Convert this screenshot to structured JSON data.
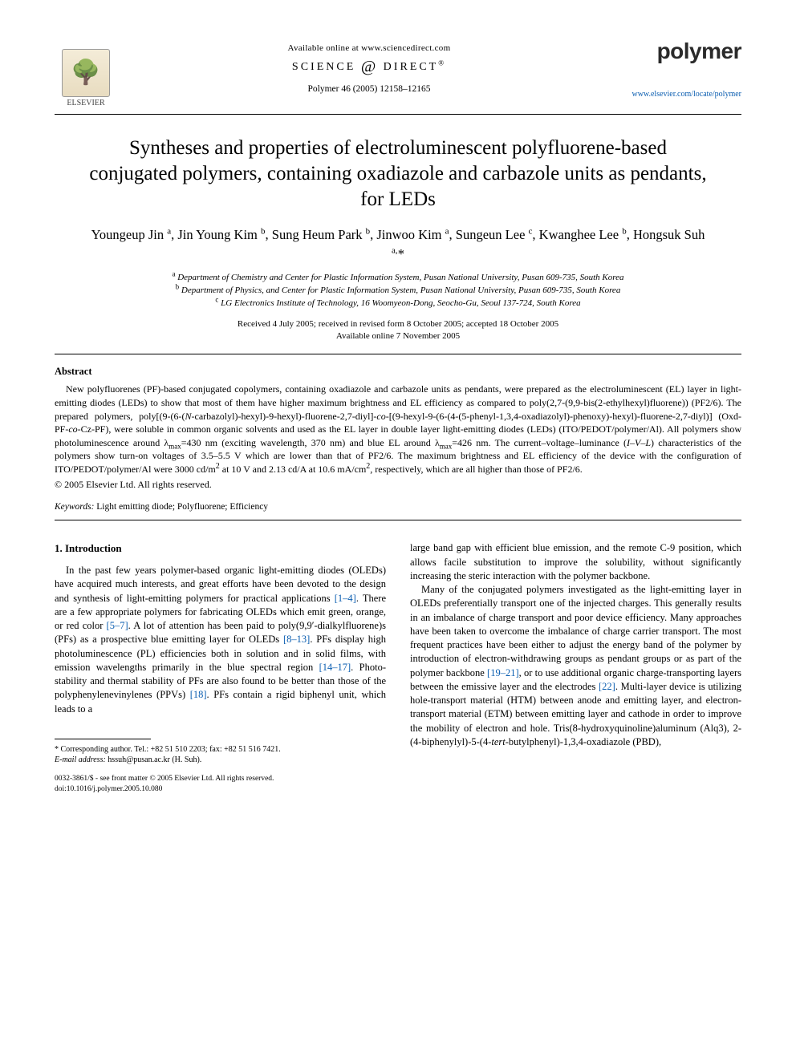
{
  "header": {
    "available_online": "Available online at www.sciencedirect.com",
    "sd_prefix": "SCIENCE",
    "sd_suffix": "DIRECT",
    "journal_ref": "Polymer 46 (2005) 12158–12165",
    "publisher_name": "ELSEVIER",
    "brand_name": "polymer",
    "brand_link": "www.elsevier.com/locate/polymer"
  },
  "title": "Syntheses and properties of electroluminescent polyfluorene-based conjugated polymers, containing oxadiazole and carbazole units as pendants, for LEDs",
  "authors_html": "Youngeup Jin <sup>a</sup>, Jin Young Kim <sup>b</sup>, Sung Heum Park <sup>b</sup>, Jinwoo Kim <sup>a</sup>, Sungeun Lee <sup>c</sup>, Kwanghee Lee <sup>b</sup>, Hongsuk Suh <sup>a,</sup>*",
  "affiliations": {
    "a": "Department of Chemistry and Center for Plastic Information System, Pusan National University, Pusan 609-735, South Korea",
    "b": "Department of Physics, and Center for Plastic Information System, Pusan National University, Pusan 609-735, South Korea",
    "c": "LG Electronics Institute of Technology, 16 Woomyeon-Dong, Seocho-Gu, Seoul 137-724, South Korea"
  },
  "dates": {
    "line1": "Received 4 July 2005; received in revised form 8 October 2005; accepted 18 October 2005",
    "line2": "Available online 7 November 2005"
  },
  "abstract": {
    "heading": "Abstract",
    "body_html": "New polyfluorenes (PF)-based conjugated copolymers, containing oxadiazole and carbazole units as pendants, were prepared as the electroluminescent (EL) layer in light-emitting diodes (LEDs) to show that most of them have higher maximum brightness and EL efficiency as compared to poly(2,7-(9,9-bis(2-ethylhexyl)fluorene)) (PF2/6). The prepared polymers, poly[(9-(6-(<i>N</i>-carbazolyl)-hexyl)-9-hexyl)-fluorene-2,7-diyl]-<i>co</i>-[(9-hexyl-9-(6-(4-(5-phenyl-1,3,4-oxadiazolyl)-phenoxy)-hexyl)-fluorene-2,7-diyl)] (Oxd-PF-<i>co</i>-Cz-PF), were soluble in common organic solvents and used as the EL layer in double layer light-emitting diodes (LEDs) (ITO/PEDOT/polymer/Al). All polymers show photoluminescence around λ<sub>max</sub>=430 nm (exciting wavelength, 370 nm) and blue EL around λ<sub>max</sub>=426 nm. The current–voltage–luminance (<i>I–V–L</i>) characteristics of the polymers show turn-on voltages of 3.5–5.5 V which are lower than that of PF2/6. The maximum brightness and EL efficiency of the device with the configuration of ITO/PEDOT/polymer/Al were 3000 cd/m<sup>2</sup> at 10 V and 2.13 cd/A at 10.6 mA/cm<sup>2</sup>, respectively, which are all higher than those of PF2/6.",
    "copyright": "© 2005 Elsevier Ltd. All rights reserved."
  },
  "keywords": {
    "label": "Keywords:",
    "text": " Light emitting diode; Polyfluorene; Efficiency"
  },
  "intro": {
    "heading": "1. Introduction",
    "col1_p1_html": "In the past few years polymer-based organic light-emitting diodes (OLEDs) have acquired much interests, and great efforts have been devoted to the design and synthesis of light-emitting polymers for practical applications <span class=\"ref\">[1–4]</span>. There are a few appropriate polymers for fabricating OLEDs which emit green, orange, or red color <span class=\"ref\">[5–7]</span>. A lot of attention has been paid to poly(9,9′-dialkylfluorene)s (PFs) as a prospective blue emitting layer for OLEDs <span class=\"ref\">[8–13]</span>. PFs display high photoluminescence (PL) efficiencies both in solution and in solid films, with emission wavelengths primarily in the blue spectral region <span class=\"ref\">[14–17]</span>. Photo-stability and thermal stability of PFs are also found to be better than those of the polyphenylenevinylenes (PPVs) <span class=\"ref\">[18]</span>. PFs contain a rigid biphenyl unit, which leads to a",
    "col2_p1_html": "large band gap with efficient blue emission, and the remote C-9 position, which allows facile substitution to improve the solubility, without significantly increasing the steric interaction with the polymer backbone.",
    "col2_p2_html": "Many of the conjugated polymers investigated as the light-emitting layer in OLEDs preferentially transport one of the injected charges. This generally results in an imbalance of charge transport and poor device efficiency. Many approaches have been taken to overcome the imbalance of charge carrier transport. The most frequent practices have been either to adjust the energy band of the polymer by introduction of electron-withdrawing groups as pendant groups or as part of the polymer backbone <span class=\"ref\">[19–21]</span>, or to use additional organic charge-transporting layers between the emissive layer and the electrodes <span class=\"ref\">[22]</span>. Multi-layer device is utilizing hole-transport material (HTM) between anode and emitting layer, and electron-transport material (ETM) between emitting layer and cathode in order to improve the mobility of electron and hole. Tris(8-hydroxyquinoline)aluminum (Alq3), 2-(4-biphenylyl)-5-(4-<i>tert</i>-butylphenyl)-1,3,4-oxadiazole (PBD),"
  },
  "footnotes": {
    "corr": "* Corresponding author. Tel.: +82 51 510 2203; fax: +82 51 516 7421.",
    "email_label": "E-mail address:",
    "email_value": " hssuh@pusan.ac.kr (H. Suh)."
  },
  "footer": {
    "line1": "0032-3861/$ - see front matter © 2005 Elsevier Ltd. All rights reserved.",
    "line2": "doi:10.1016/j.polymer.2005.10.080"
  },
  "colors": {
    "link": "#0a5db0",
    "text": "#000000",
    "bg": "#ffffff"
  },
  "typography": {
    "title_fontsize_pt": 19,
    "authors_fontsize_pt": 12,
    "body_fontsize_pt": 9.5,
    "abstract_fontsize_pt": 9,
    "font_family": "Times New Roman"
  }
}
